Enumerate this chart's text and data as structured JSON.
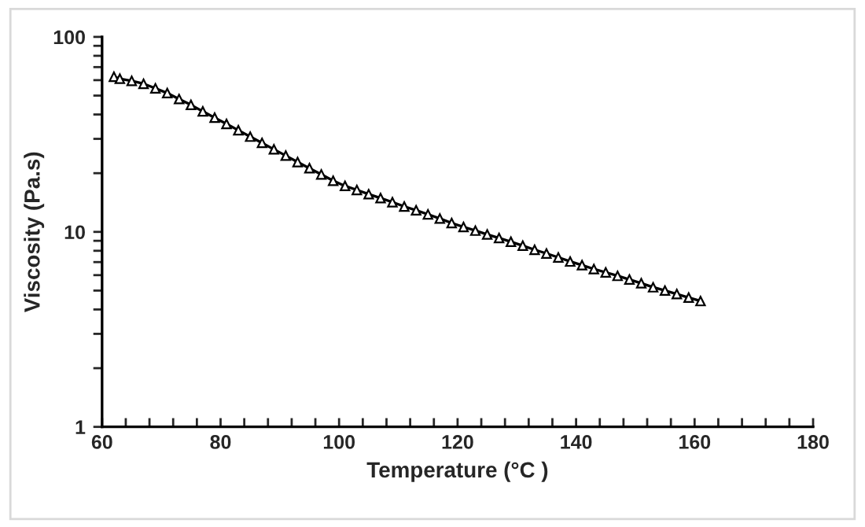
{
  "chart_data": {
    "type": "line",
    "xlabel": "Temperature (°C )",
    "ylabel": "Viscosity (Pa.s)",
    "x": [
      62,
      63,
      65,
      67,
      69,
      71,
      73,
      75,
      77,
      79,
      81,
      83,
      85,
      87,
      89,
      91,
      93,
      95,
      97,
      99,
      101,
      103,
      105,
      107,
      109,
      111,
      113,
      115,
      117,
      119,
      121,
      123,
      125,
      127,
      129,
      131,
      133,
      135,
      137,
      139,
      141,
      143,
      145,
      147,
      149,
      151,
      153,
      155,
      157,
      159,
      161
    ],
    "series": [
      {
        "color": "#000000",
        "values": [
          62.5,
          61,
          59.5,
          57.5,
          54.5,
          51.5,
          48,
          44.8,
          41.5,
          38.5,
          35.8,
          33.2,
          30.8,
          28.6,
          26.5,
          24.6,
          22.8,
          21.2,
          19.7,
          18.3,
          17.2,
          16.4,
          15.6,
          14.9,
          14.2,
          13.5,
          12.9,
          12.3,
          11.7,
          11.1,
          10.6,
          10.15,
          9.7,
          9.3,
          8.9,
          8.5,
          8.1,
          7.75,
          7.4,
          7.05,
          6.75,
          6.45,
          6.2,
          5.95,
          5.7,
          5.45,
          5.2,
          5.0,
          4.8,
          4.6,
          4.42
        ]
      }
    ],
    "marker": "triangle",
    "line_style": "solid",
    "log": "y",
    "grid": false,
    "legend": false,
    "xlim": [
      60,
      180
    ],
    "xticks": [
      60,
      80,
      100,
      120,
      140,
      160,
      180
    ],
    "ylim": [
      1,
      100
    ],
    "yticks": [
      1,
      10,
      100
    ]
  }
}
